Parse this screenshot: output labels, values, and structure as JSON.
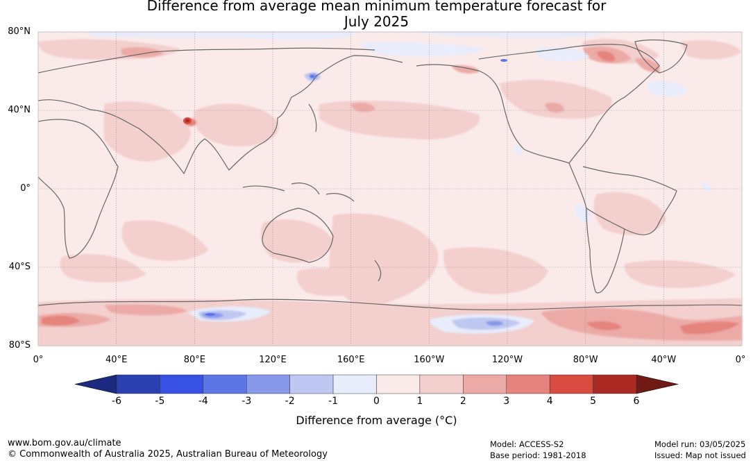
{
  "title": "Difference from average mean minimum temperature forecast for\nJuly 2025",
  "lat_labels": [
    {
      "text": "80°N",
      "lat": 80
    },
    {
      "text": "40°N",
      "lat": 40
    },
    {
      "text": "0°",
      "lat": 0
    },
    {
      "text": "40°S",
      "lat": -40
    },
    {
      "text": "80°S",
      "lat": -80
    }
  ],
  "lon_labels": [
    {
      "text": "0°",
      "lon": 0
    },
    {
      "text": "40°E",
      "lon": 40
    },
    {
      "text": "80°E",
      "lon": 80
    },
    {
      "text": "120°E",
      "lon": 120
    },
    {
      "text": "160°E",
      "lon": 160
    },
    {
      "text": "160°W",
      "lon": 200
    },
    {
      "text": "120°W",
      "lon": 240
    },
    {
      "text": "80°W",
      "lon": 280
    },
    {
      "text": "40°W",
      "lon": 320
    },
    {
      "text": "0°",
      "lon": 360
    }
  ],
  "legend": {
    "title": "Difference from average (°C)",
    "ticks": [
      "-6",
      "-5",
      "-4",
      "-3",
      "-2",
      "-1",
      "0",
      "1",
      "2",
      "3",
      "4",
      "5",
      "6"
    ],
    "colors": [
      "#2a3fb0",
      "#3651e4",
      "#5d76e6",
      "#8898ea",
      "#bfc8f2",
      "#e8ecfb",
      "#fbeaea",
      "#f3cfce",
      "#ecaaa6",
      "#e5837d",
      "#d84b40",
      "#ab2a23"
    ],
    "low_color": "#1b2a80",
    "high_color": "#6f1a15"
  },
  "regions": [
    {
      "type": "warm_mid",
      "lon": 20,
      "lat": -67,
      "note": "Antarctic coast"
    },
    {
      "type": "warm_high",
      "lon": 76,
      "lat": 34,
      "note": "Tibetan plateau spot"
    },
    {
      "type": "cool_mid",
      "lon": 90,
      "lat": -68,
      "note": "East Antarctica"
    },
    {
      "type": "cool_mid",
      "lon": 215,
      "lat": -71,
      "note": "Ross Sea"
    },
    {
      "type": "warm_mid",
      "lon": 295,
      "lat": -71,
      "note": "Weddell Sea"
    }
  ],
  "footer": {
    "site": "www.bom.gov.au/climate",
    "copyright": "© Commonwealth of Australia 2025, Australian Bureau of Meteorology",
    "model": "Model: ACCESS-S2",
    "base_period": "Base period: 1981-2018",
    "model_run": "Model run: 03/05/2025",
    "issued": "Issued: Map not issued"
  }
}
